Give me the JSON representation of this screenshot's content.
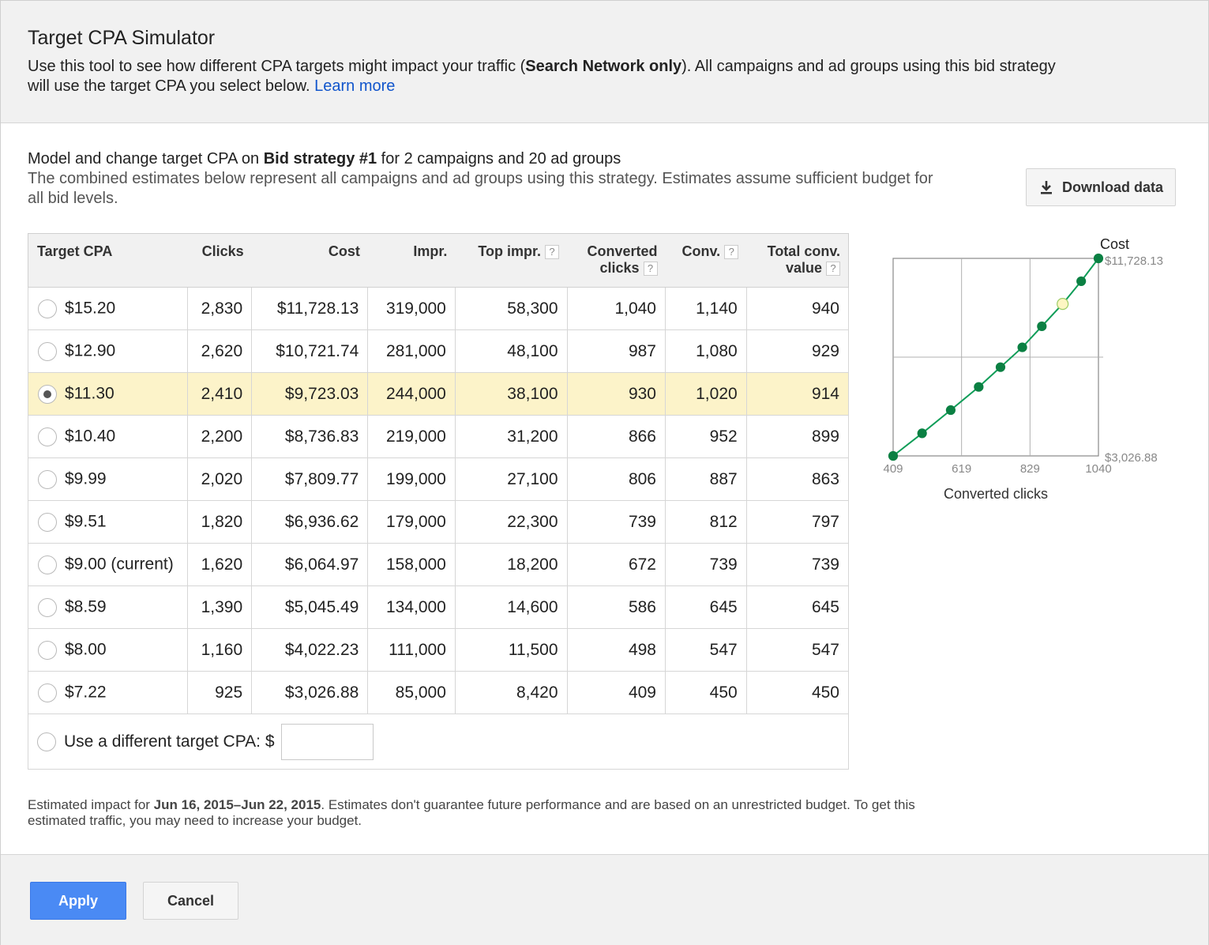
{
  "dialog": {
    "title": "Target CPA Simulator",
    "intro_before": "Use this tool to see how different CPA targets might impact your traffic (",
    "intro_bold": "Search Network only",
    "intro_after": "). All campaigns and ad groups using this bid strategy will use the target CPA you select below. ",
    "learn_more": "Learn more"
  },
  "model": {
    "line1_before": "Model and change target CPA on ",
    "line1_bold": "Bid strategy #1",
    "line1_after": " for 2 campaigns and 20 ad groups",
    "line2": "The combined estimates below represent all campaigns and ad groups using this strategy. Estimates assume sufficient budget for all bid levels."
  },
  "download_label": "Download data",
  "table": {
    "headers": {
      "target_cpa": "Target CPA",
      "clicks": "Clicks",
      "cost": "Cost",
      "impr": "Impr.",
      "top_impr": "Top impr.",
      "converted_clicks_1": "Converted",
      "converted_clicks_2": "clicks",
      "conv": "Conv.",
      "total_conv_value_1": "Total conv.",
      "total_conv_value_2": "value",
      "help": "?"
    },
    "rows": [
      {
        "cpa": "$15.20",
        "clicks": "2,830",
        "cost": "$11,728.13",
        "impr": "319,000",
        "top_impr": "58,300",
        "converted_clicks": "1,040",
        "conv": "1,140",
        "total_conv_value": "940"
      },
      {
        "cpa": "$12.90",
        "clicks": "2,620",
        "cost": "$10,721.74",
        "impr": "281,000",
        "top_impr": "48,100",
        "converted_clicks": "987",
        "conv": "1,080",
        "total_conv_value": "929"
      },
      {
        "cpa": "$11.30",
        "clicks": "2,410",
        "cost": "$9,723.03",
        "impr": "244,000",
        "top_impr": "38,100",
        "converted_clicks": "930",
        "conv": "1,020",
        "total_conv_value": "914"
      },
      {
        "cpa": "$10.40",
        "clicks": "2,200",
        "cost": "$8,736.83",
        "impr": "219,000",
        "top_impr": "31,200",
        "converted_clicks": "866",
        "conv": "952",
        "total_conv_value": "899"
      },
      {
        "cpa": "$9.99",
        "clicks": "2,020",
        "cost": "$7,809.77",
        "impr": "199,000",
        "top_impr": "27,100",
        "converted_clicks": "806",
        "conv": "887",
        "total_conv_value": "863"
      },
      {
        "cpa": "$9.51",
        "clicks": "1,820",
        "cost": "$6,936.62",
        "impr": "179,000",
        "top_impr": "22,300",
        "converted_clicks": "739",
        "conv": "812",
        "total_conv_value": "797"
      },
      {
        "cpa": "$9.00 (current)",
        "clicks": "1,620",
        "cost": "$6,064.97",
        "impr": "158,000",
        "top_impr": "18,200",
        "converted_clicks": "672",
        "conv": "739",
        "total_conv_value": "739"
      },
      {
        "cpa": "$8.59",
        "clicks": "1,390",
        "cost": "$5,045.49",
        "impr": "134,000",
        "top_impr": "14,600",
        "converted_clicks": "586",
        "conv": "645",
        "total_conv_value": "645"
      },
      {
        "cpa": "$8.00",
        "clicks": "1,160",
        "cost": "$4,022.23",
        "impr": "111,000",
        "top_impr": "11,500",
        "converted_clicks": "498",
        "conv": "547",
        "total_conv_value": "547"
      },
      {
        "cpa": "$7.22",
        "clicks": "925",
        "cost": "$3,026.88",
        "impr": "85,000",
        "top_impr": "8,420",
        "converted_clicks": "409",
        "conv": "450",
        "total_conv_value": "450"
      }
    ],
    "selected_index": 2,
    "custom_label": "Use a different target CPA:",
    "custom_currency": "$",
    "custom_value": ""
  },
  "chart_data": {
    "type": "line",
    "title": "Cost",
    "xlabel": "Converted clicks",
    "ylabel": "Cost",
    "x_ticks": [
      "409",
      "619",
      "829",
      "1040"
    ],
    "y_ticks": [
      "$3,026.88",
      "$11,728.13"
    ],
    "xlim": [
      409,
      1040
    ],
    "ylim": [
      3026.88,
      11728.13
    ],
    "x": [
      409,
      498,
      586,
      672,
      739,
      806,
      866,
      930,
      987,
      1040
    ],
    "y": [
      3026.88,
      4022.23,
      5045.49,
      6064.97,
      6936.62,
      7809.77,
      8736.83,
      9723.03,
      10721.74,
      11728.13
    ],
    "highlight_index": 7,
    "grid": true,
    "colors": {
      "line": "#0f9d58",
      "point": "#0b8043",
      "highlight": "#fdf6c3",
      "grid": "#b0b0b0"
    }
  },
  "footnote": {
    "before": "Estimated impact for ",
    "bold": "Jun 16, 2015–Jun 22, 2015",
    "after": ". Estimates don't guarantee future performance and are based on an unrestricted budget. To get this estimated traffic, you may need to increase your budget."
  },
  "buttons": {
    "apply": "Apply",
    "cancel": "Cancel"
  },
  "colors": {
    "accent": "#4a8af4",
    "selected_row": "#fcf3c9",
    "link": "#1155cc"
  }
}
